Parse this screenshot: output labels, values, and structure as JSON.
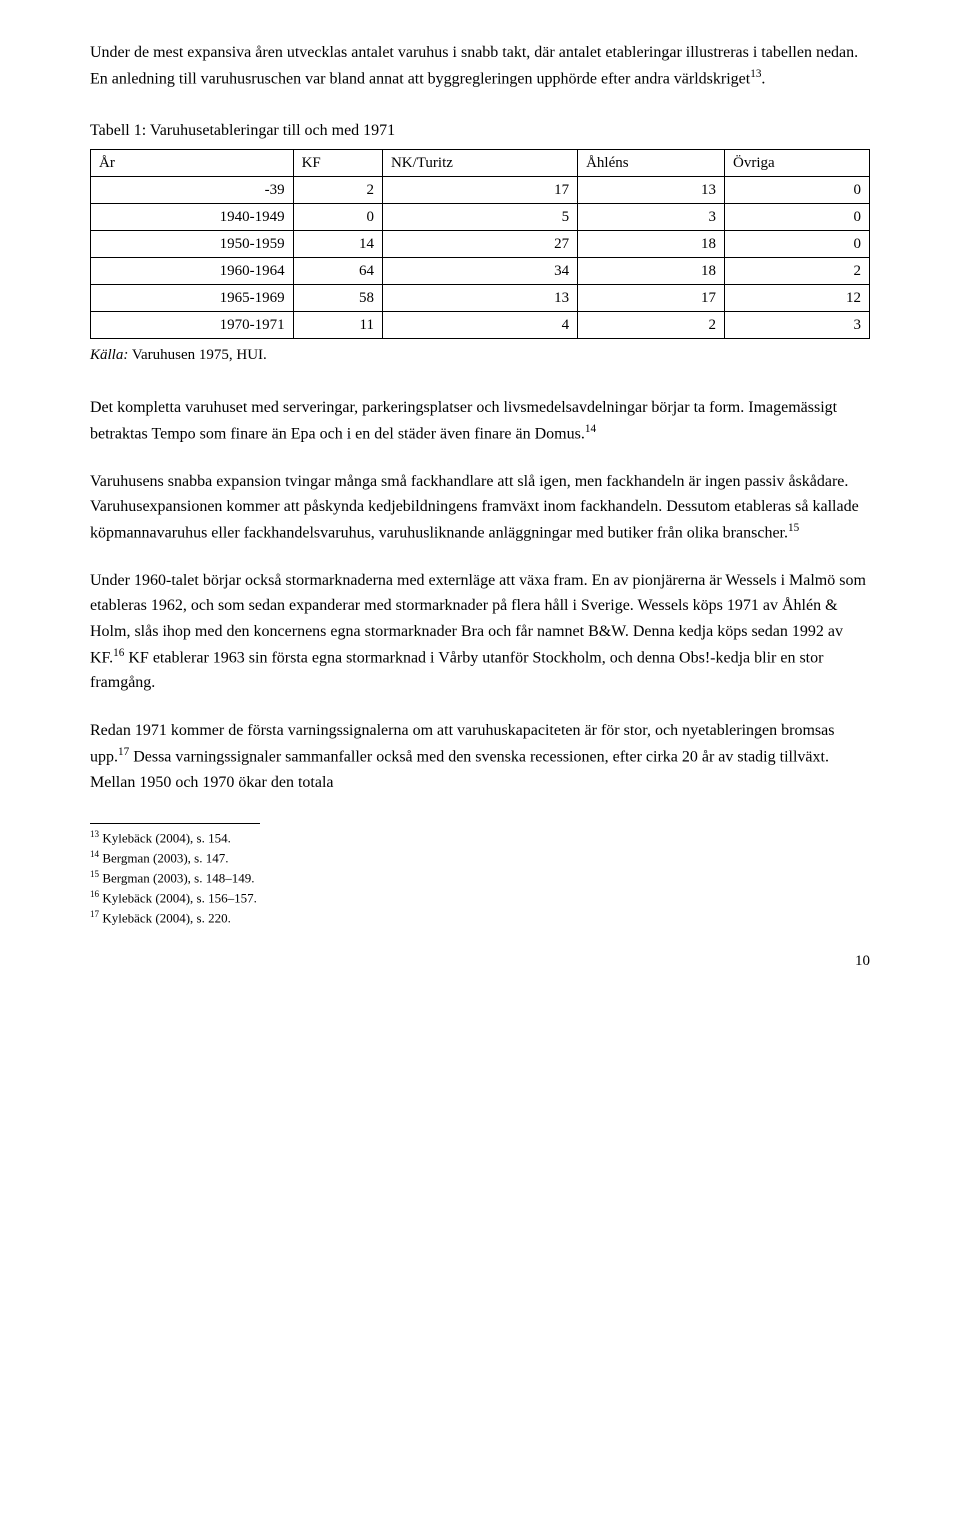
{
  "paragraphs": {
    "p1a": "Under de mest expansiva åren utvecklas antalet varuhus i snabb takt, där antalet etableringar illustreras i tabellen nedan. En anledning till varuhusruschen var bland annat att byggregleringen upphörde efter andra världskriget",
    "p1_fn": "13",
    "p2": "Det kompletta varuhuset med serveringar, parkeringsplatser och livsmedelsavdelningar börjar ta form. Imagemässigt betraktas Tempo som finare än Epa och i en del städer även finare än Domus.",
    "p2_fn": "14",
    "p3a": "Varuhusens snabba expansion tvingar många små fackhandlare att slå igen, men fackhandeln är ingen passiv åskådare. Varuhusexpansionen kommer att påskynda kedjebildningens framväxt inom fackhandeln. Dessutom etableras så kallade köpmannavaruhus eller fackhandelsvaruhus, varuhusliknande anläggningar med butiker från olika branscher.",
    "p3_fn": "15",
    "p4a": "Under 1960-talet börjar också stormarknaderna med externläge att växa fram. En av pionjärerna är Wessels i Malmö som etableras 1962, och som sedan expanderar med stormarknader på flera håll i Sverige. Wessels köps 1971 av Åhlén & Holm, slås ihop med den koncernens egna stormarknader Bra och får namnet B&W. Denna kedja köps sedan 1992 av KF.",
    "p4_fn": "16",
    "p4b": " KF etablerar 1963 sin första egna stormarknad i Vårby utanför Stockholm, och denna Obs!-kedja blir en stor framgång.",
    "p5a": "Redan 1971 kommer de första varningssignalerna om att varuhuskapaciteten är för stor, och nyetableringen bromsas upp.",
    "p5_fn": "17",
    "p5b": " Dessa varningssignaler sammanfaller också med den svenska recessionen, efter cirka 20 år av stadig tillväxt. Mellan 1950 och 1970 ökar den totala"
  },
  "table": {
    "title": "Tabell 1: Varuhusetableringar till och med 1971",
    "columns": [
      "År",
      "KF",
      "NK/Turitz",
      "Åhléns",
      "Övriga"
    ],
    "rows": [
      [
        "-39",
        "2",
        "17",
        "13",
        "0"
      ],
      [
        "1940-1949",
        "0",
        "5",
        "3",
        "0"
      ],
      [
        "1950-1959",
        "14",
        "27",
        "18",
        "0"
      ],
      [
        "1960-1964",
        "64",
        "34",
        "18",
        "2"
      ],
      [
        "1965-1969",
        "58",
        "13",
        "17",
        "12"
      ],
      [
        "1970-1971",
        "11",
        "4",
        "2",
        "3"
      ]
    ],
    "source_label": "Källa:",
    "source_text": " Varuhusen 1975, HUI."
  },
  "footnotes": [
    {
      "num": "13",
      "text": " Kylebäck (2004), s. 154."
    },
    {
      "num": "14",
      "text": " Bergman (2003), s. 147."
    },
    {
      "num": "15",
      "text": " Bergman (2003), s. 148–149."
    },
    {
      "num": "16",
      "text": " Kylebäck (2004), s. 156–157."
    },
    {
      "num": "17",
      "text": " Kylebäck (2004), s. 220."
    }
  ],
  "page_number": "10"
}
